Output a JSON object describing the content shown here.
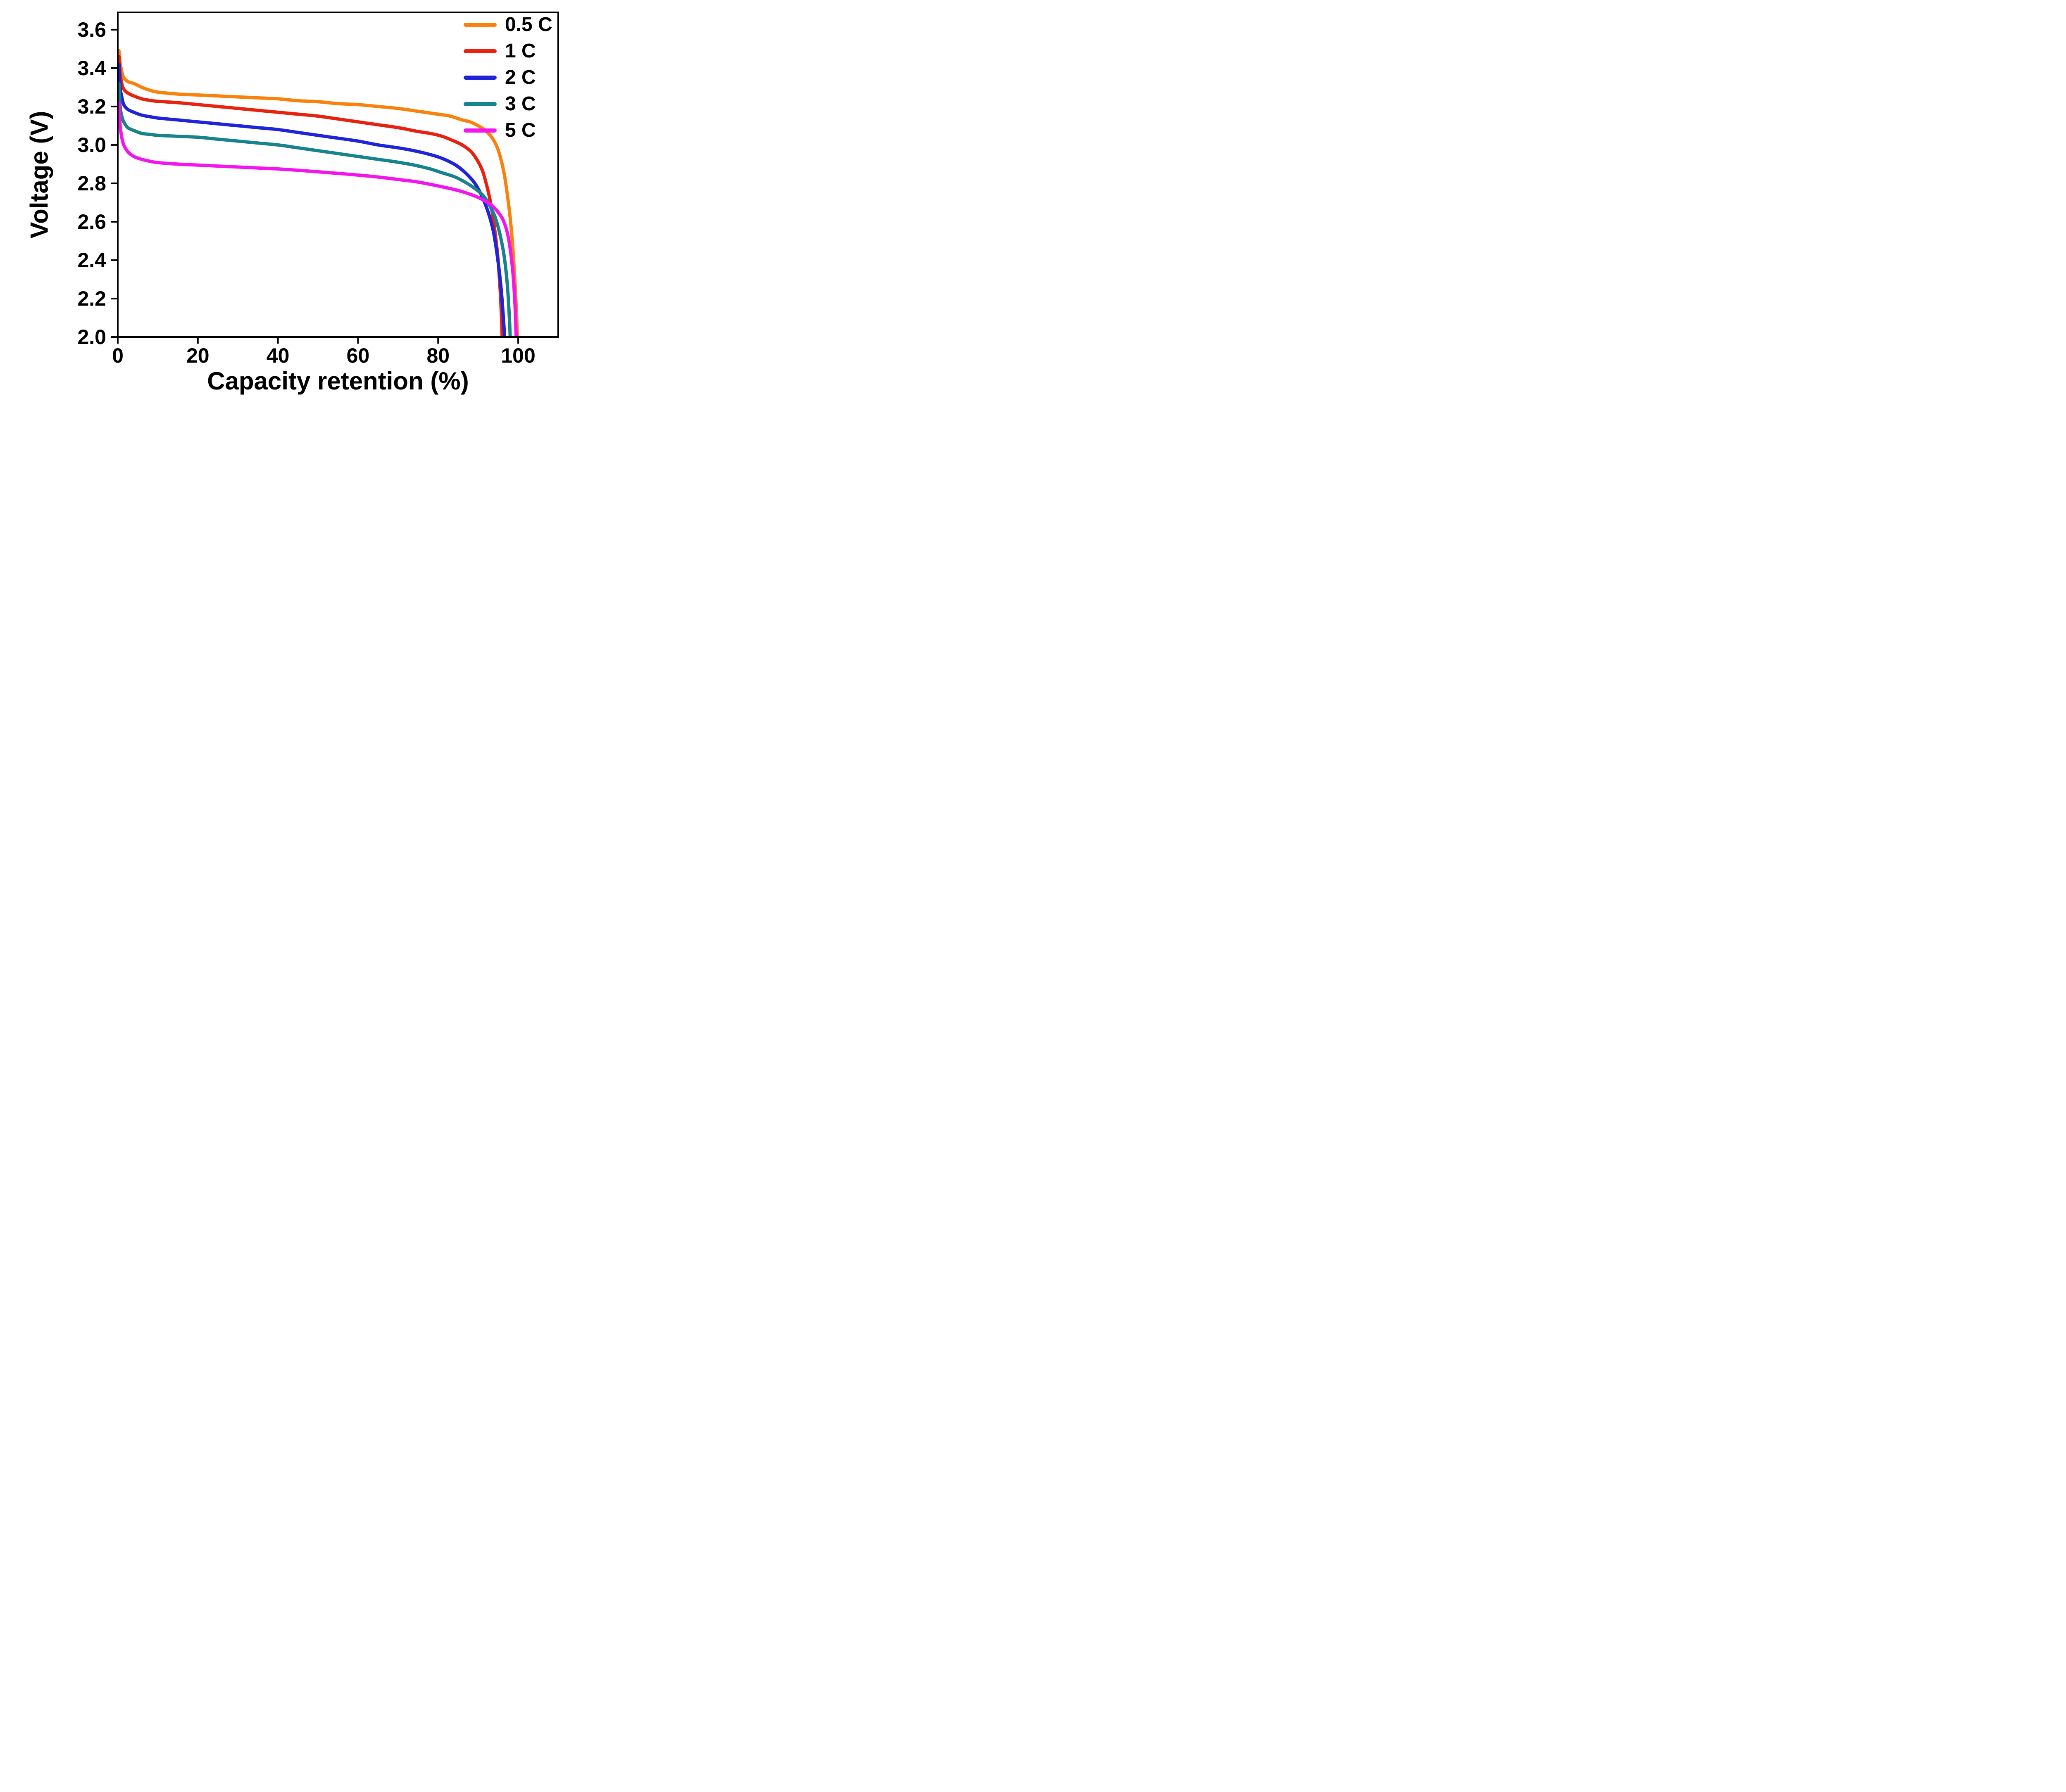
{
  "chart_data": {
    "type": "line",
    "title": "",
    "xlabel": "Capacity retention (%)",
    "ylabel": "Voltage (V)",
    "xlim": [
      0,
      110
    ],
    "ylim": [
      2.0,
      3.69
    ],
    "xticks": [
      0,
      20,
      40,
      60,
      80,
      100
    ],
    "yticks": [
      2.0,
      2.2,
      2.4,
      2.6,
      2.8,
      3.0,
      3.2,
      3.4,
      3.6
    ],
    "grid": false,
    "legend_position": "top-right-inside",
    "axis_color": "#000000",
    "background": "#ffffff",
    "series": [
      {
        "name": "0.5 C",
        "color": "#F8820B",
        "points": [
          [
            0.3,
            3.49
          ],
          [
            0.5,
            3.44
          ],
          [
            1,
            3.38
          ],
          [
            1.5,
            3.35
          ],
          [
            2.5,
            3.33
          ],
          [
            4,
            3.32
          ],
          [
            6,
            3.3
          ],
          [
            8,
            3.285
          ],
          [
            10,
            3.275
          ],
          [
            15,
            3.265
          ],
          [
            20,
            3.26
          ],
          [
            25,
            3.255
          ],
          [
            30,
            3.25
          ],
          [
            35,
            3.245
          ],
          [
            40,
            3.24
          ],
          [
            45,
            3.23
          ],
          [
            50,
            3.225
          ],
          [
            55,
            3.215
          ],
          [
            60,
            3.21
          ],
          [
            65,
            3.2
          ],
          [
            70,
            3.19
          ],
          [
            75,
            3.175
          ],
          [
            80,
            3.16
          ],
          [
            83,
            3.15
          ],
          [
            86,
            3.13
          ],
          [
            88,
            3.12
          ],
          [
            90,
            3.1
          ],
          [
            91.5,
            3.08
          ],
          [
            93,
            3.05
          ],
          [
            94.5,
            3.0
          ],
          [
            95.5,
            2.94
          ],
          [
            96.5,
            2.85
          ],
          [
            97.3,
            2.74
          ],
          [
            98,
            2.62
          ],
          [
            98.6,
            2.48
          ],
          [
            99.1,
            2.32
          ],
          [
            99.5,
            2.16
          ],
          [
            99.8,
            2.0
          ]
        ]
      },
      {
        "name": "1 C",
        "color": "#E8220E",
        "points": [
          [
            0.3,
            3.46
          ],
          [
            0.6,
            3.37
          ],
          [
            1,
            3.32
          ],
          [
            1.5,
            3.29
          ],
          [
            2.5,
            3.27
          ],
          [
            4,
            3.255
          ],
          [
            6,
            3.24
          ],
          [
            8,
            3.232
          ],
          [
            10,
            3.227
          ],
          [
            15,
            3.22
          ],
          [
            20,
            3.21
          ],
          [
            25,
            3.2
          ],
          [
            30,
            3.19
          ],
          [
            35,
            3.18
          ],
          [
            40,
            3.17
          ],
          [
            45,
            3.16
          ],
          [
            50,
            3.15
          ],
          [
            55,
            3.135
          ],
          [
            60,
            3.12
          ],
          [
            65,
            3.105
          ],
          [
            70,
            3.09
          ],
          [
            75,
            3.07
          ],
          [
            78,
            3.06
          ],
          [
            81,
            3.045
          ],
          [
            84,
            3.02
          ],
          [
            86,
            3.0
          ],
          [
            88,
            2.97
          ],
          [
            89.5,
            2.93
          ],
          [
            91,
            2.87
          ],
          [
            92,
            2.8
          ],
          [
            93,
            2.71
          ],
          [
            94,
            2.58
          ],
          [
            94.8,
            2.44
          ],
          [
            95.4,
            2.28
          ],
          [
            95.8,
            2.12
          ],
          [
            96,
            2.0
          ]
        ]
      },
      {
        "name": "2 C",
        "color": "#1F24DC",
        "points": [
          [
            0.3,
            3.42
          ],
          [
            0.6,
            3.3
          ],
          [
            1,
            3.25
          ],
          [
            1.5,
            3.21
          ],
          [
            2.5,
            3.185
          ],
          [
            4,
            3.17
          ],
          [
            6,
            3.155
          ],
          [
            8,
            3.147
          ],
          [
            10,
            3.14
          ],
          [
            15,
            3.13
          ],
          [
            20,
            3.12
          ],
          [
            25,
            3.11
          ],
          [
            30,
            3.1
          ],
          [
            35,
            3.09
          ],
          [
            40,
            3.08
          ],
          [
            45,
            3.065
          ],
          [
            50,
            3.05
          ],
          [
            55,
            3.035
          ],
          [
            60,
            3.02
          ],
          [
            65,
            3.0
          ],
          [
            70,
            2.985
          ],
          [
            74,
            2.97
          ],
          [
            78,
            2.95
          ],
          [
            81,
            2.93
          ],
          [
            84,
            2.9
          ],
          [
            86,
            2.87
          ],
          [
            88,
            2.83
          ],
          [
            89.5,
            2.79
          ],
          [
            91,
            2.73
          ],
          [
            92.5,
            2.65
          ],
          [
            93.8,
            2.55
          ],
          [
            94.8,
            2.42
          ],
          [
            95.7,
            2.26
          ],
          [
            96.3,
            2.1
          ],
          [
            96.6,
            2.0
          ]
        ]
      },
      {
        "name": "3 C",
        "color": "#17838C",
        "points": [
          [
            0.3,
            3.32
          ],
          [
            0.6,
            3.2
          ],
          [
            1,
            3.15
          ],
          [
            1.5,
            3.12
          ],
          [
            2.5,
            3.09
          ],
          [
            4,
            3.075
          ],
          [
            6,
            3.06
          ],
          [
            8,
            3.055
          ],
          [
            10,
            3.05
          ],
          [
            15,
            3.045
          ],
          [
            20,
            3.04
          ],
          [
            25,
            3.03
          ],
          [
            30,
            3.02
          ],
          [
            35,
            3.01
          ],
          [
            40,
            3.0
          ],
          [
            45,
            2.985
          ],
          [
            50,
            2.97
          ],
          [
            55,
            2.955
          ],
          [
            60,
            2.94
          ],
          [
            65,
            2.925
          ],
          [
            70,
            2.91
          ],
          [
            74,
            2.895
          ],
          [
            78,
            2.875
          ],
          [
            81,
            2.855
          ],
          [
            84,
            2.835
          ],
          [
            86,
            2.815
          ],
          [
            88,
            2.79
          ],
          [
            90,
            2.76
          ],
          [
            91.5,
            2.73
          ],
          [
            93,
            2.68
          ],
          [
            94.3,
            2.62
          ],
          [
            95.5,
            2.53
          ],
          [
            96.5,
            2.42
          ],
          [
            97.3,
            2.27
          ],
          [
            97.8,
            2.1
          ],
          [
            98,
            2.0
          ]
        ]
      },
      {
        "name": "5 C",
        "color": "#F414F0",
        "points": [
          [
            0.3,
            3.22
          ],
          [
            0.6,
            3.1
          ],
          [
            1,
            3.04
          ],
          [
            1.5,
            3.0
          ],
          [
            2.5,
            2.965
          ],
          [
            4,
            2.94
          ],
          [
            6,
            2.925
          ],
          [
            8,
            2.915
          ],
          [
            10,
            2.908
          ],
          [
            15,
            2.9
          ],
          [
            20,
            2.895
          ],
          [
            25,
            2.89
          ],
          [
            30,
            2.885
          ],
          [
            35,
            2.88
          ],
          [
            40,
            2.875
          ],
          [
            45,
            2.868
          ],
          [
            50,
            2.86
          ],
          [
            55,
            2.852
          ],
          [
            60,
            2.843
          ],
          [
            65,
            2.833
          ],
          [
            70,
            2.82
          ],
          [
            74,
            2.81
          ],
          [
            78,
            2.795
          ],
          [
            81,
            2.782
          ],
          [
            84,
            2.768
          ],
          [
            86,
            2.757
          ],
          [
            88,
            2.743
          ],
          [
            90,
            2.727
          ],
          [
            92,
            2.705
          ],
          [
            93.5,
            2.683
          ],
          [
            95,
            2.65
          ],
          [
            96.2,
            2.61
          ],
          [
            97.2,
            2.55
          ],
          [
            98,
            2.46
          ],
          [
            98.7,
            2.33
          ],
          [
            99.2,
            2.17
          ],
          [
            99.5,
            2.0
          ]
        ]
      }
    ]
  }
}
